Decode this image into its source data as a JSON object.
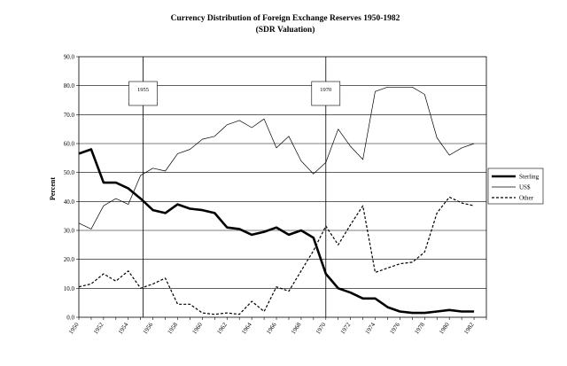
{
  "chart_data": {
    "type": "line",
    "title": "Currency Distribution of Foreign Exchange Reserves 1950-1982",
    "subtitle": "(SDR Valuation)",
    "xlabel": "",
    "ylabel": "Percent",
    "ylim": [
      0,
      90
    ],
    "yticks": [
      "0.0",
      "10.0",
      "20.0",
      "30.0",
      "40.0",
      "50.0",
      "60.0",
      "70.0",
      "80.0",
      "90.0"
    ],
    "xlim": [
      1950,
      1983
    ],
    "xticks": [
      "1950",
      "1952",
      "1954",
      "1956",
      "1958",
      "1960",
      "1962",
      "1964",
      "1966",
      "1968",
      "1970",
      "1972",
      "1974",
      "1976",
      "1978",
      "1980",
      "1982"
    ],
    "x": [
      1950,
      1951,
      1952,
      1953,
      1954,
      1955,
      1956,
      1957,
      1958,
      1959,
      1960,
      1961,
      1962,
      1963,
      1964,
      1965,
      1966,
      1967,
      1968,
      1969,
      1970,
      1971,
      1972,
      1973,
      1974,
      1975,
      1976,
      1977,
      1978,
      1979,
      1980,
      1981,
      1982
    ],
    "legend_position": "right",
    "grid": "horizontal",
    "series": [
      {
        "name": "Sterling",
        "style": "thick-solid",
        "color": "#000000",
        "values": [
          56.5,
          58,
          46.5,
          46.5,
          44.5,
          41,
          37,
          36,
          39,
          37.5,
          37,
          36,
          31,
          30.5,
          28.5,
          29.5,
          31,
          28.5,
          30,
          27.5,
          15,
          10,
          8.5,
          6.5,
          6.5,
          3.5,
          2,
          1.5,
          1.5,
          2,
          2.5,
          2,
          2
        ]
      },
      {
        "name": "US$",
        "style": "thin-solid",
        "color": "#000000",
        "values": [
          32.5,
          30.5,
          38.5,
          41,
          39,
          49,
          51.5,
          50.5,
          56.5,
          58,
          61.5,
          62.5,
          66.5,
          68,
          65.5,
          68.5,
          58.5,
          62.5,
          54,
          49.5,
          53.5,
          65,
          59,
          54.5,
          78,
          79.5,
          79.5,
          79.5,
          77,
          62,
          56,
          58.5,
          60
        ]
      },
      {
        "name": "Other",
        "style": "dashed",
        "color": "#000000",
        "values": [
          10.5,
          11.5,
          15,
          12.5,
          16,
          10,
          11.5,
          13.5,
          4.5,
          4.5,
          1.5,
          1,
          1.5,
          1,
          5.5,
          2,
          10.5,
          9,
          16,
          23,
          31.5,
          25,
          32,
          38.5,
          15.5,
          17,
          18.5,
          19,
          22.5,
          36,
          41.5,
          39.5,
          38.5
        ]
      }
    ],
    "annotations": [
      {
        "label": "1955",
        "x": 1955.2
      },
      {
        "label": "1970",
        "x": 1970
      }
    ]
  }
}
